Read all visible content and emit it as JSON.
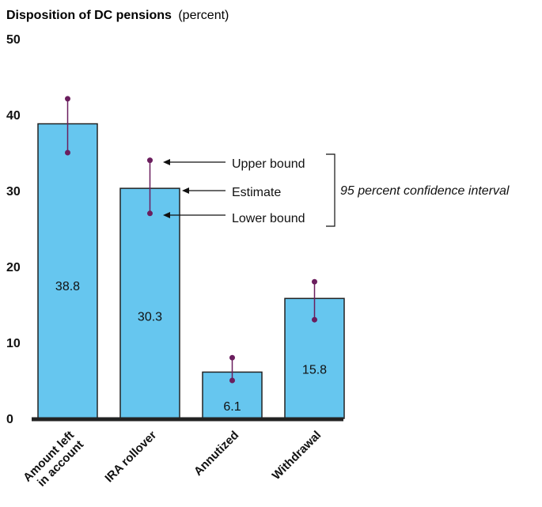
{
  "chart_data": {
    "type": "bar",
    "title": "Disposition of DC pensions",
    "title_unit": "(percent)",
    "categories": [
      [
        "Amount left",
        "in account"
      ],
      [
        "IRA rollover"
      ],
      [
        "Annutized"
      ],
      [
        "Withdrawal"
      ]
    ],
    "values": [
      38.8,
      30.3,
      6.1,
      15.8
    ],
    "value_labels": [
      "38.8",
      "30.3",
      "6.1",
      "15.8"
    ],
    "upper_bounds": [
      42.1,
      34.0,
      8.0,
      18.0
    ],
    "lower_bounds": [
      35.0,
      27.0,
      5.0,
      13.0
    ],
    "ylim": [
      0,
      50
    ],
    "yticks": [
      "0",
      "10",
      "20",
      "30",
      "40",
      "50"
    ],
    "grid": false,
    "legend": {
      "upper": "Upper bound",
      "estimate": "Estimate",
      "lower": "Lower bound",
      "note": "95 percent confidence interval"
    },
    "colors": {
      "bar": "#66c6ef",
      "bar_stroke": "#222222",
      "error": "#6b1e5e",
      "baseline": "#222222"
    }
  }
}
